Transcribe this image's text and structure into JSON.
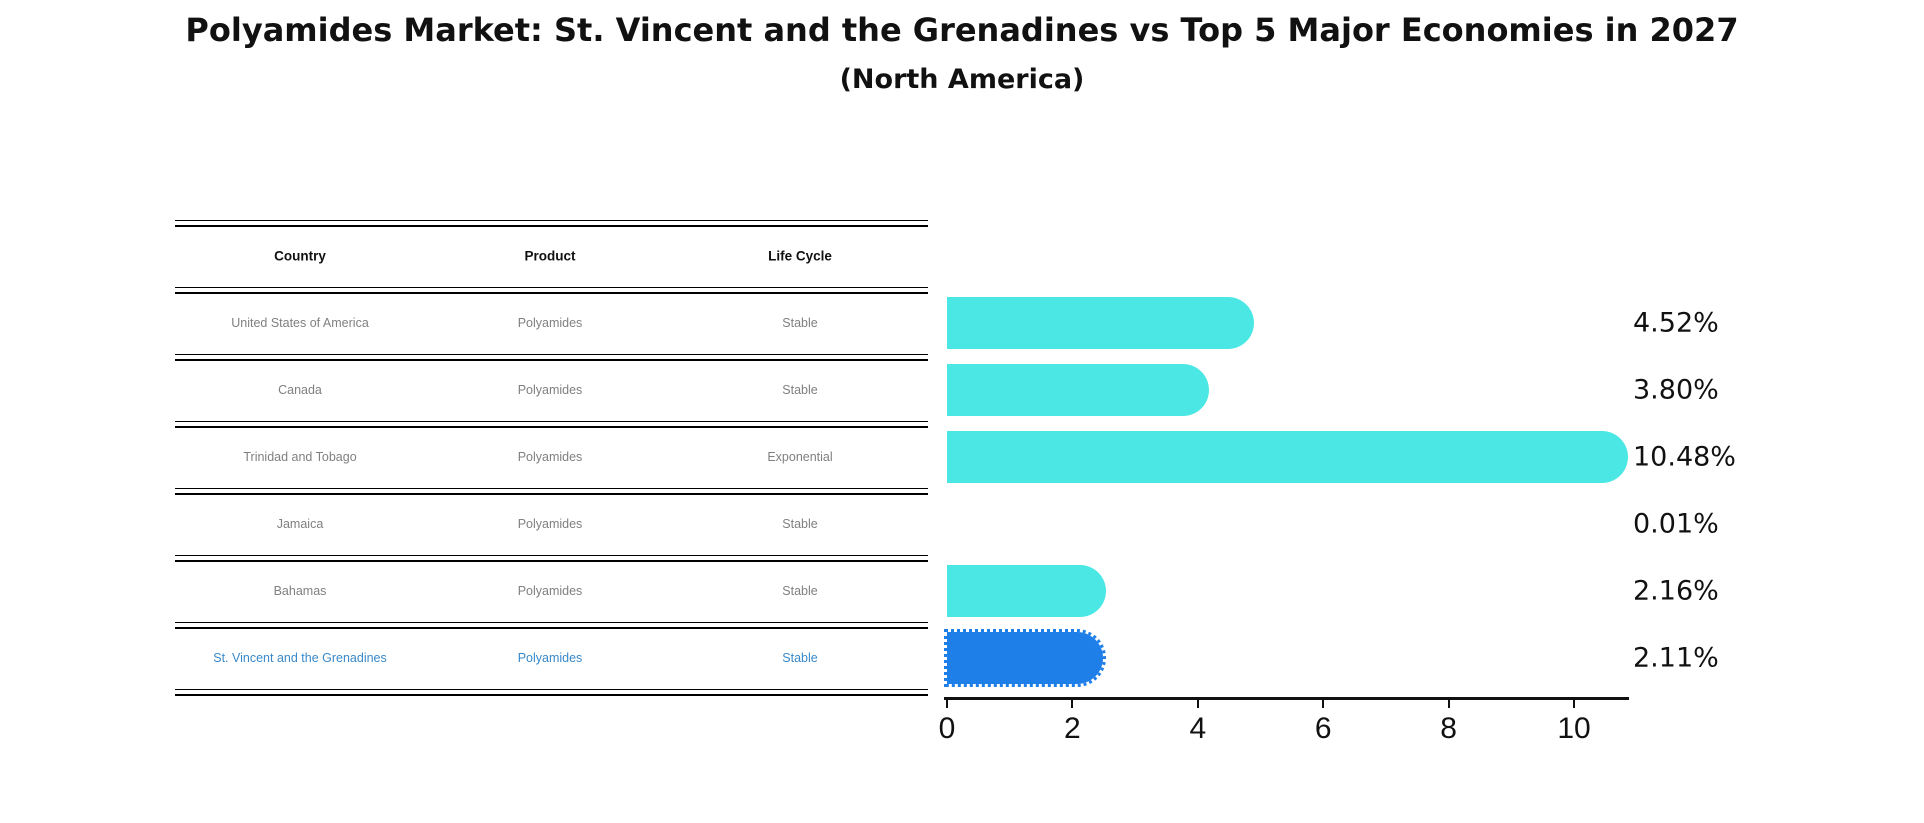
{
  "title": "Polyamides Market: St. Vincent and the Grenadines vs Top 5 Major Economies in 2027",
  "subtitle": "(North America)",
  "table": {
    "headers": [
      "Country",
      "Product",
      "Life Cycle"
    ],
    "rows": [
      {
        "country": "United States of America",
        "product": "Polyamides",
        "life_cycle": "Stable",
        "highlight": false
      },
      {
        "country": "Canada",
        "product": "Polyamides",
        "life_cycle": "Stable",
        "highlight": false
      },
      {
        "country": "Trinidad and Tobago",
        "product": "Polyamides",
        "life_cycle": "Exponential",
        "highlight": false
      },
      {
        "country": "Jamaica",
        "product": "Polyamides",
        "life_cycle": "Stable",
        "highlight": false
      },
      {
        "country": "Bahamas",
        "product": "Polyamides",
        "life_cycle": "Stable",
        "highlight": false
      },
      {
        "country": "St. Vincent and the Grenadines",
        "product": "Polyamides",
        "life_cycle": "Stable",
        "highlight": true
      }
    ]
  },
  "chart_data": {
    "type": "bar",
    "orientation": "horizontal",
    "title": "Polyamides Market: St. Vincent and the Grenadines vs Top 5 Major Economies in 2027",
    "subtitle": "(North America)",
    "categories": [
      "United States of America",
      "Canada",
      "Trinidad and Tobago",
      "Jamaica",
      "Bahamas",
      "St. Vincent and the Grenadines"
    ],
    "values": [
      4.52,
      3.8,
      10.48,
      0.01,
      2.16,
      2.11
    ],
    "value_labels": [
      "4.52%",
      "3.80%",
      "10.48%",
      "0.01%",
      "2.16%",
      "2.11%"
    ],
    "xticks": [
      0,
      2,
      4,
      6,
      8,
      10
    ],
    "xlim": [
      0,
      10.86
    ],
    "xlabel": "",
    "ylabel": "",
    "grid": false,
    "legend": false,
    "highlight_index": 5
  },
  "colors": {
    "bar": "#4BE7E5",
    "highlight_bar": "#1F7FE8",
    "highlight_text": "#3989C9",
    "row_text": "#808080",
    "header_text": "#111111",
    "value_label": "#111111",
    "axis": "#111111",
    "background": "#FFFFFF"
  }
}
